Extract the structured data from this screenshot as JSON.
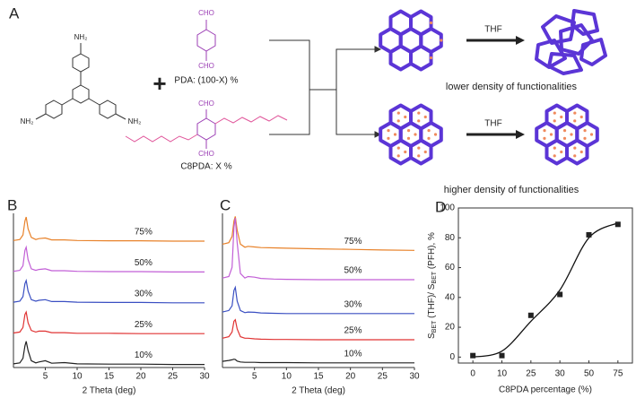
{
  "scheme": {
    "label": "A",
    "amine_groups": [
      "NH₂",
      "NH₂",
      "NH₂"
    ],
    "plus": "+",
    "pda": {
      "groups": [
        "CHO",
        "CHO"
      ],
      "label": "PDA: (100-X) %"
    },
    "c8pda": {
      "groups": [
        "CHO",
        "CHO"
      ],
      "label": "C8PDA: X %"
    },
    "solvents": [
      "THF",
      "THF"
    ],
    "outcomes": [
      "lower density of functionalities",
      "higher density of functionalities"
    ]
  },
  "chart_data": [
    {
      "type": "line",
      "label": "B",
      "xlabel": "2 Theta (deg)",
      "x": [
        0,
        1,
        1.5,
        1.8,
        2.0,
        2.3,
        2.8,
        3.5,
        4,
        5,
        6,
        8,
        10,
        15,
        20,
        25,
        30
      ],
      "xlim": [
        0,
        30
      ],
      "xticks": [
        5,
        10,
        15,
        20,
        25,
        30
      ],
      "ylim": [
        -0.1,
        4.9
      ],
      "series": [
        {
          "name": "75%",
          "color": "#e8822a",
          "values": [
            4.02,
            4.05,
            4.2,
            4.65,
            4.78,
            4.4,
            4.12,
            4.05,
            4.08,
            4.1,
            4.04,
            4.04,
            4.02,
            4.01,
            4.01,
            4.0,
            4.0
          ]
        },
        {
          "name": "50%",
          "color": "#c25fd6",
          "values": [
            3.02,
            3.05,
            3.2,
            3.7,
            3.8,
            3.4,
            3.1,
            3.05,
            3.08,
            3.1,
            3.04,
            3.04,
            3.02,
            3.01,
            3.01,
            3.0,
            3.0
          ]
        },
        {
          "name": "30%",
          "color": "#3a4fc2",
          "values": [
            2.02,
            2.05,
            2.2,
            2.62,
            2.72,
            2.38,
            2.1,
            2.05,
            2.08,
            2.1,
            2.04,
            2.04,
            2.02,
            2.01,
            2.01,
            2.0,
            2.0
          ]
        },
        {
          "name": "25%",
          "color": "#e03333",
          "values": [
            1.02,
            1.05,
            1.2,
            1.62,
            1.7,
            1.35,
            1.1,
            1.05,
            1.08,
            1.08,
            1.03,
            1.03,
            1.01,
            1.01,
            1.0,
            1.0,
            1.0
          ]
        },
        {
          "name": "10%",
          "color": "#222222",
          "values": [
            0.02,
            0.05,
            0.2,
            0.6,
            0.75,
            0.45,
            0.12,
            0.05,
            0.08,
            0.12,
            0.04,
            0.06,
            0.02,
            0.01,
            0.01,
            0.0,
            0.0
          ]
        }
      ]
    },
    {
      "type": "line",
      "label": "C",
      "xlabel": "2 Theta (deg)",
      "x": [
        0,
        1,
        1.5,
        1.8,
        2.0,
        2.3,
        2.8,
        3.5,
        4,
        5,
        6,
        8,
        10,
        15,
        20,
        25,
        30
      ],
      "xlim": [
        0,
        30
      ],
      "xticks": [
        5,
        10,
        15,
        20,
        25,
        30
      ],
      "ylim": [
        -0.15,
        4.85
      ],
      "series": [
        {
          "name": "75%",
          "color": "#e8822a",
          "values": [
            3.85,
            3.9,
            4.1,
            4.6,
            4.75,
            4.3,
            3.85,
            3.75,
            3.78,
            3.76,
            3.74,
            3.73,
            3.72,
            3.7,
            3.68,
            3.66,
            3.65
          ]
        },
        {
          "name": "50%",
          "color": "#c25fd6",
          "values": [
            2.75,
            2.8,
            3.1,
            4.4,
            4.7,
            3.9,
            2.9,
            2.75,
            2.8,
            2.78,
            2.74,
            2.72,
            2.71,
            2.7,
            2.7,
            2.7,
            2.7
          ]
        },
        {
          "name": "30%",
          "color": "#3a4fc2",
          "values": [
            1.65,
            1.7,
            1.85,
            2.35,
            2.45,
            2.0,
            1.7,
            1.63,
            1.65,
            1.64,
            1.62,
            1.61,
            1.6,
            1.6,
            1.6,
            1.6,
            1.6
          ]
        },
        {
          "name": "25%",
          "color": "#e03333",
          "values": [
            0.8,
            0.85,
            1.0,
            1.35,
            1.4,
            1.1,
            0.85,
            0.8,
            0.8,
            0.78,
            0.77,
            0.76,
            0.76,
            0.75,
            0.75,
            0.75,
            0.75
          ]
        },
        {
          "name": "10%",
          "color": "#222222",
          "values": [
            0.05,
            0.08,
            0.1,
            0.12,
            0.11,
            0.06,
            0.03,
            0.02,
            0.02,
            0.02,
            0.01,
            0.01,
            0.01,
            0.0,
            0.0,
            0.0,
            0.0
          ]
        }
      ]
    },
    {
      "type": "scatter",
      "label": "D",
      "xlabel": "C8PDA percentage (%)",
      "ylabel_parts": [
        {
          "text": "S"
        },
        {
          "text": "BET",
          "sub": true
        },
        {
          "text": " (THF)/ S"
        },
        {
          "text": "BET",
          "sub": true
        },
        {
          "text": " (PFH), %"
        }
      ],
      "categories": [
        "0",
        "10",
        "25",
        "30",
        "50",
        "75"
      ],
      "ylim": [
        -4,
        100
      ],
      "yticks": [
        0,
        20,
        40,
        60,
        80,
        100
      ],
      "series": [
        {
          "color": "#222222",
          "values": [
            1,
            1,
            28,
            42,
            82,
            89
          ]
        }
      ],
      "curve_values": [
        0,
        4,
        24,
        45,
        80,
        90
      ]
    }
  ]
}
